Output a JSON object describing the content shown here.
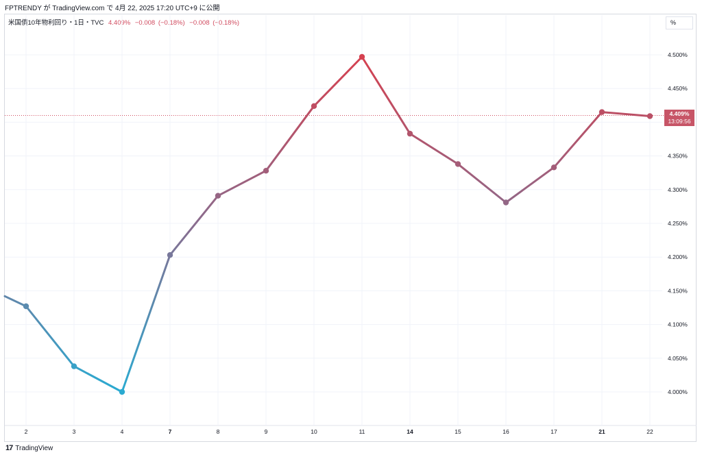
{
  "header": {
    "publisher": "FPTRENDY が TradingView.com で 4月 22, 2025 17:20 UTC+9 に公開"
  },
  "legend": {
    "symbol": "米国債10年物利回り・1日・TVC",
    "value": "4.409%",
    "change": "−0.008",
    "change_pct": "(−0.18%)",
    "change2": "−0.008",
    "change2_pct": "(−0.18%)"
  },
  "scale_button": "%",
  "price_tag": {
    "value": "4.409%",
    "countdown": "13:09:56"
  },
  "footer": {
    "brand": "TradingView",
    "mark": "17"
  },
  "colors": {
    "low": "#2aaad1",
    "high": "#d6404f",
    "price_line": "#d04a5e",
    "grid": "#f0f3fa"
  },
  "chart_data": {
    "type": "line",
    "x": [
      "",
      "2",
      "3",
      "4",
      "7",
      "8",
      "9",
      "10",
      "11",
      "14",
      "15",
      "16",
      "17",
      "21",
      "22"
    ],
    "values": [
      4.142,
      4.127,
      4.038,
      4.0,
      4.203,
      4.291,
      4.328,
      4.424,
      4.497,
      4.383,
      4.338,
      4.281,
      4.333,
      4.415,
      4.409
    ],
    "markers": [
      false,
      true,
      true,
      true,
      true,
      true,
      true,
      true,
      true,
      true,
      true,
      true,
      true,
      true,
      true
    ],
    "bold_ticks": [
      "7",
      "14",
      "21"
    ],
    "y_ticks": [
      "4.000%",
      "4.050%",
      "4.100%",
      "4.150%",
      "4.200%",
      "4.250%",
      "4.300%",
      "4.350%",
      "4.400%",
      "4.450%",
      "4.500%"
    ],
    "ylim": [
      3.975,
      4.525
    ],
    "last_price": 4.409,
    "grid": true
  }
}
